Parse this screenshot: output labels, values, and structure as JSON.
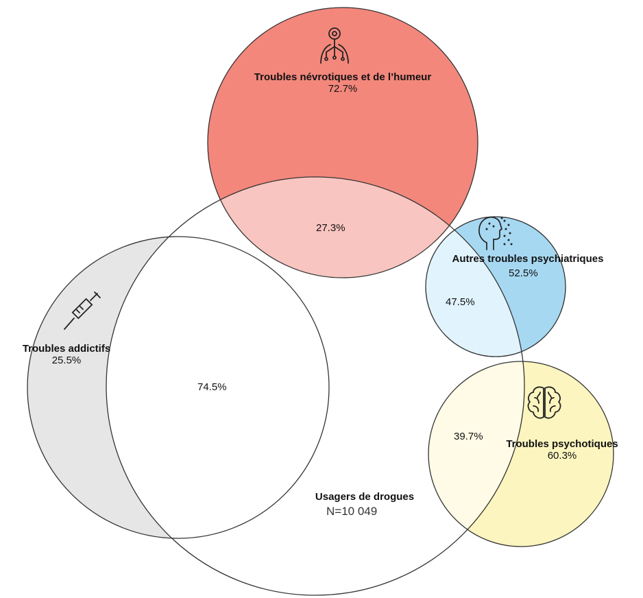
{
  "diagram": {
    "main": {
      "title": "Usagers de drogues",
      "count": "N=10 049",
      "color": "#ffffff"
    },
    "groups": [
      {
        "id": "nevrotiques",
        "title": "Troubles névrotiques et de l’humeur",
        "outside_pct": "72.7%",
        "overlap_pct": "27.3%",
        "color": "#f3877c",
        "overlap_color": "#f9c5c0",
        "icon": "neuron-person-icon"
      },
      {
        "id": "addictifs",
        "title": "Troubles addictifs",
        "outside_pct": "25.5%",
        "overlap_pct": "74.5%",
        "color": "#e6e6e6",
        "overlap_color": "#ffffff",
        "icon": "syringe-icon"
      },
      {
        "id": "autres",
        "title": "Autres troubles psychiatriques",
        "outside_pct": "52.5%",
        "overlap_pct": "47.5%",
        "color": "#a7d8f2",
        "overlap_color": "#e1f3fc",
        "icon": "head-dots-icon"
      },
      {
        "id": "psychotiques",
        "title": "Troubles psychotiques",
        "outside_pct": "60.3%",
        "overlap_pct": "39.7%",
        "color": "#fcf5bf",
        "overlap_color": "#fffbe7",
        "icon": "brain-icon"
      }
    ]
  }
}
